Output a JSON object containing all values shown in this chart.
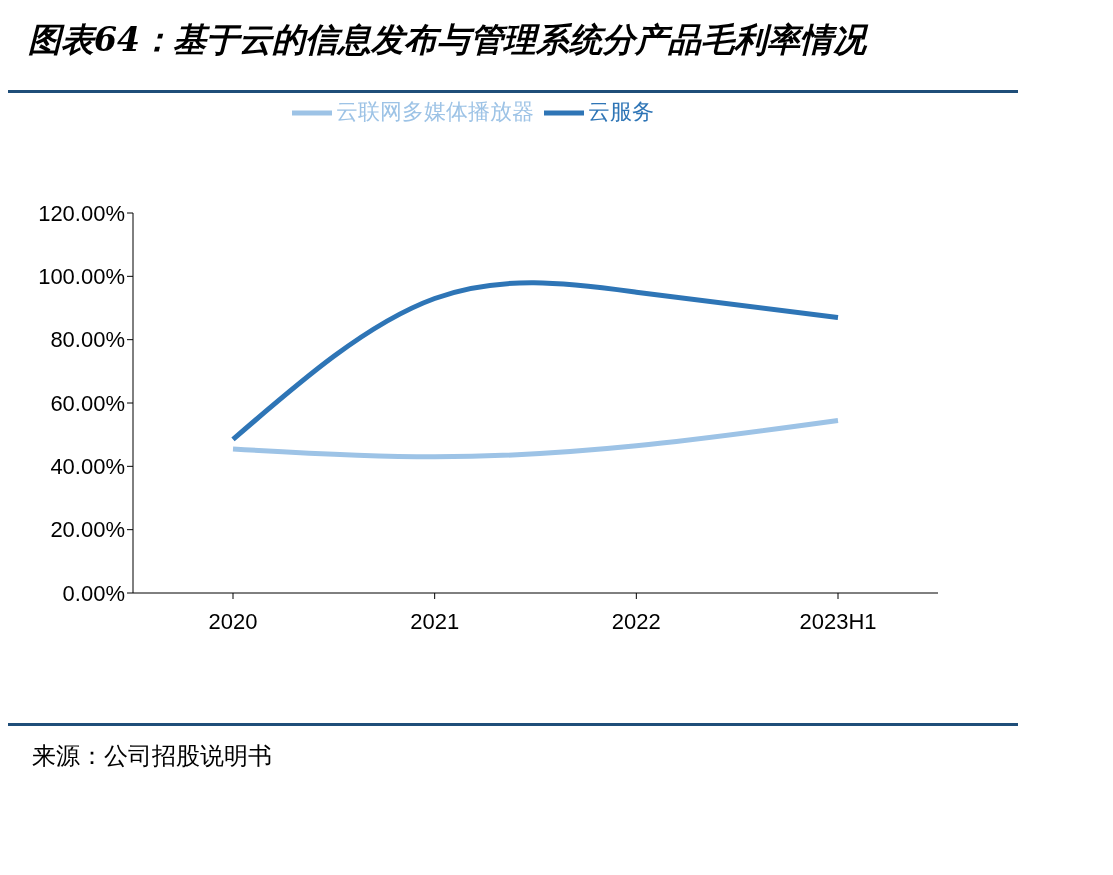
{
  "chart_data": {
    "type": "line",
    "title": "图表64：基于云的信息发布与管理系统分产品毛利率情况",
    "annotations": [
      "来源：公司招股说明书"
    ],
    "categories": [
      "2020",
      "2021",
      "2022",
      "2023H1"
    ],
    "series": [
      {
        "name": "云联网多媒体播放器",
        "color": "#9dc3e6",
        "values": [
          45.5,
          43,
          46.5,
          54.5
        ]
      },
      {
        "name": "云服务",
        "color": "#2e75b6",
        "values": [
          48.5,
          93,
          95,
          87
        ]
      }
    ],
    "ylim": [
      0,
      120
    ],
    "yticks": [
      {
        "value": 0,
        "label": "0.00%"
      },
      {
        "value": 20,
        "label": "20.00%"
      },
      {
        "value": 40,
        "label": "40.00%"
      },
      {
        "value": 60,
        "label": "60.00%"
      },
      {
        "value": 80,
        "label": "80.00%"
      },
      {
        "value": 100,
        "label": "100.00%"
      },
      {
        "value": 120,
        "label": "120.00%"
      }
    ],
    "grid": false,
    "legend": "top",
    "marker": "none",
    "line_style": "solid"
  }
}
